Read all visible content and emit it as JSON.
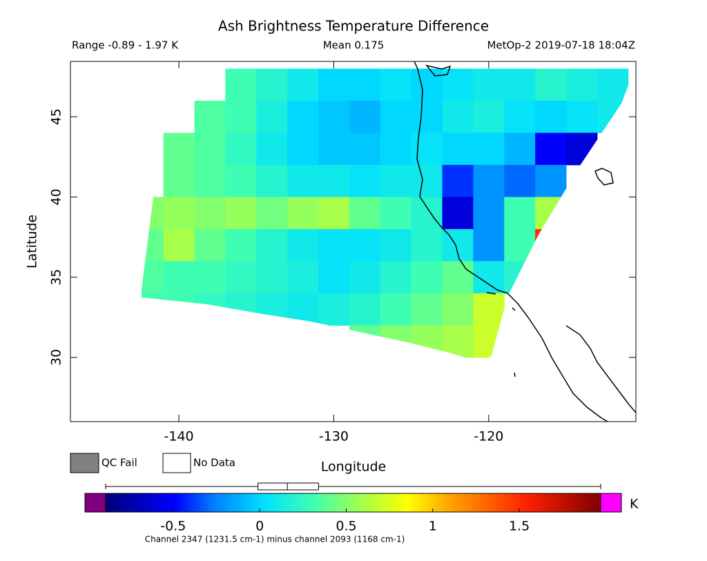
{
  "chart_data": {
    "type": "map",
    "title": "Ash Brightness Temperature Difference",
    "range_label": "Range -0.89 - 1.97 K",
    "mean_label": "Mean 0.175",
    "source_label": "MetOp-2 2019-07-18 18:04Z",
    "xlabel": "Longitude",
    "ylabel": "Latitude",
    "xlim": [
      -147,
      -110.5
    ],
    "ylim": [
      26,
      48.45
    ],
    "xticks": [
      -140,
      -130,
      -120
    ],
    "yticks": [
      30,
      35,
      40,
      45
    ],
    "grid_lon": [
      -142,
      -140,
      -138,
      -136,
      -134,
      -132,
      -130,
      -128,
      -126,
      -124,
      -122,
      -120,
      -118,
      -116,
      -114,
      -112
    ],
    "grid_lat": [
      47,
      45,
      43,
      41,
      39,
      37,
      35,
      33,
      31
    ],
    "values": [
      [
        null,
        null,
        null,
        0.3,
        0.2,
        0.1,
        0.0,
        0.0,
        0.05,
        0.0,
        0.05,
        0.1,
        0.1,
        0.2,
        0.15,
        0.1
      ],
      [
        null,
        null,
        0.35,
        0.3,
        0.15,
        0.0,
        -0.05,
        -0.1,
        0.0,
        0.0,
        0.1,
        0.15,
        0.05,
        0.0,
        0.05,
        0.1
      ],
      [
        null,
        0.4,
        0.35,
        0.25,
        0.1,
        0.0,
        -0.05,
        -0.05,
        0.0,
        0.05,
        0.0,
        0.0,
        -0.1,
        -0.5,
        -0.6,
        null
      ],
      [
        null,
        0.4,
        0.35,
        0.3,
        0.2,
        0.1,
        0.1,
        0.05,
        0.1,
        0.1,
        -0.4,
        -0.2,
        -0.3,
        -0.2,
        null,
        null
      ],
      [
        0.5,
        0.55,
        0.5,
        0.55,
        0.45,
        0.55,
        0.6,
        0.4,
        0.3,
        0.2,
        -0.6,
        -0.2,
        0.3,
        0.6,
        null,
        null
      ],
      [
        0.4,
        0.6,
        0.4,
        0.3,
        0.2,
        0.1,
        0.05,
        0.05,
        0.1,
        0.2,
        0.1,
        -0.2,
        0.3,
        1.5,
        null,
        null
      ],
      [
        0.35,
        0.3,
        0.3,
        0.25,
        0.2,
        0.15,
        0.05,
        0.1,
        0.2,
        0.3,
        0.4,
        0.1,
        0.2,
        null,
        null,
        null
      ],
      [
        0.3,
        0.3,
        0.25,
        0.2,
        0.15,
        0.1,
        0.15,
        0.2,
        0.3,
        0.4,
        0.5,
        0.7,
        null,
        null,
        null,
        null
      ],
      [
        null,
        null,
        null,
        null,
        null,
        null,
        null,
        0.4,
        0.5,
        0.55,
        0.6,
        0.7,
        null,
        null,
        null,
        null
      ]
    ],
    "legend": [
      "QC Fail",
      "No Data"
    ],
    "colorbar": {
      "lim": [
        -0.89,
        1.97
      ],
      "ticks": [
        -0.5,
        0,
        0.5,
        1,
        1.5
      ],
      "unit": "K",
      "caption": "Channel 2347 (1231.5 cm-1) minus channel 2093 (1168 cm-1)",
      "box": {
        "min": -0.89,
        "q1": -0.01,
        "median": 0.16,
        "q3": 0.34,
        "max": 1.97
      }
    }
  }
}
